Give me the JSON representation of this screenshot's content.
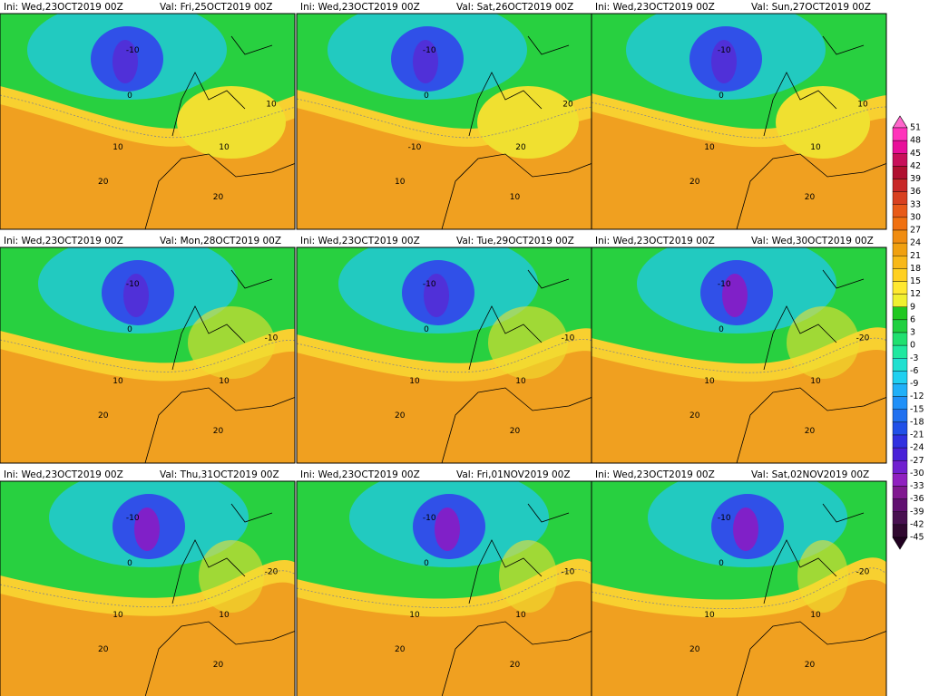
{
  "panels": [
    {
      "ini": "Ini: Wed,23OCT2019  00Z",
      "val": "Val: Fri,25OCT2019  00Z",
      "labels": [
        "-10",
        "0",
        "10",
        "20",
        "10",
        "20",
        "10"
      ]
    },
    {
      "ini": "Ini: Wed,23OCT2019  00Z",
      "val": "Val: Sat,26OCT2019  00Z",
      "labels": [
        "-10",
        "0",
        "-10",
        "10",
        "20",
        "10",
        "20"
      ]
    },
    {
      "ini": "Ini: Wed,23OCT2019  00Z",
      "val": "Val: Sun,27OCT2019  00Z",
      "labels": [
        "-10",
        "0",
        "10",
        "20",
        "10",
        "20",
        "10"
      ]
    },
    {
      "ini": "Ini: Wed,23OCT2019  00Z",
      "val": "Val: Mon,28OCT2019  00Z",
      "labels": [
        "-10",
        "0",
        "10",
        "20",
        "10",
        "20",
        "-10"
      ]
    },
    {
      "ini": "Ini: Wed,23OCT2019  00Z",
      "val": "Val: Tue,29OCT2019  00Z",
      "labels": [
        "-10",
        "0",
        "10",
        "20",
        "10",
        "20",
        "-10"
      ]
    },
    {
      "ini": "Ini: Wed,23OCT2019  00Z",
      "val": "Val: Wed,30OCT2019  00Z",
      "labels": [
        "-10",
        "0",
        "10",
        "20",
        "10",
        "20",
        "-20"
      ]
    },
    {
      "ini": "Ini: Wed,23OCT2019  00Z",
      "val": "Val: Thu,31OCT2019  00Z",
      "labels": [
        "-10",
        "0",
        "10",
        "20",
        "10",
        "20",
        "-20"
      ]
    },
    {
      "ini": "Ini: Wed,23OCT2019  00Z",
      "val": "Val: Fri,01NOV2019  00Z",
      "labels": [
        "-10",
        "0",
        "10",
        "20",
        "10",
        "20",
        "-10"
      ]
    },
    {
      "ini": "Ini: Wed,23OCT2019  00Z",
      "val": "Val: Sat,02NOV2019  00Z",
      "labels": [
        "-10",
        "0",
        "10",
        "20",
        "10",
        "20",
        "-20"
      ]
    }
  ],
  "colorbar": {
    "labels": [
      "51",
      "48",
      "45",
      "42",
      "39",
      "36",
      "33",
      "30",
      "27",
      "24",
      "21",
      "18",
      "15",
      "12",
      "9",
      "6",
      "3",
      "0",
      "-3",
      "-6",
      "-9",
      "-12",
      "-15",
      "-18",
      "-21",
      "-24",
      "-27",
      "-30",
      "-33",
      "-36",
      "-39",
      "-42",
      "-45"
    ],
    "colors": [
      "#ff66cc",
      "#ff33bb",
      "#e8109a",
      "#c8105a",
      "#b01030",
      "#c82828",
      "#d84020",
      "#e85a18",
      "#f07010",
      "#f08c10",
      "#f0a010",
      "#f8b818",
      "#ffd020",
      "#ffe830",
      "#f0f030",
      "#20c820",
      "#20d040",
      "#20e070",
      "#20e8a0",
      "#20e0d0",
      "#20d0f0",
      "#20b0f8",
      "#2090f8",
      "#2070f0",
      "#2050e8",
      "#3030e0",
      "#4820d8",
      "#7020d0",
      "#9020c0",
      "#801890",
      "#601070",
      "#481050",
      "#300830",
      "#200020"
    ]
  }
}
